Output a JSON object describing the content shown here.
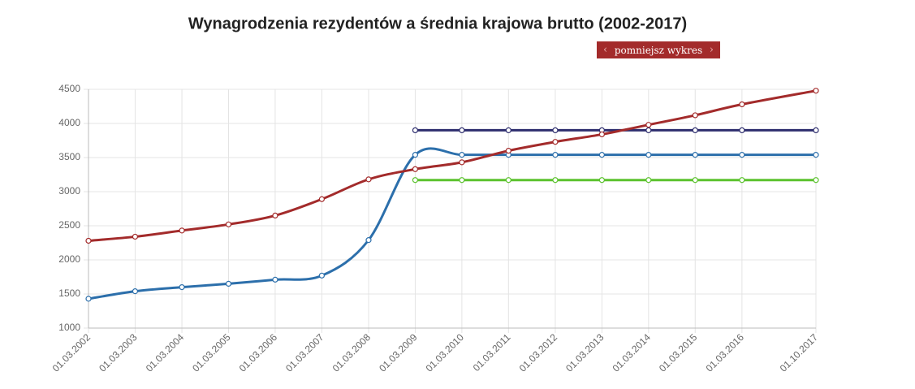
{
  "chart_data": {
    "type": "line",
    "title": "Wynagrodzenia rezydentów a średnia krajowa brutto (2002-2017)",
    "x": [
      "01.03.2002",
      "01.03.2003",
      "01.03.2004",
      "01.03.2005",
      "01.03.2006",
      "01.03.2007",
      "01.03.2008",
      "01.03.2009",
      "01.03.2010",
      "01.03.2011",
      "01.03.2012",
      "01.03.2013",
      "01.03.2014",
      "01.03.2015",
      "01.03.2016",
      "01.10.2017"
    ],
    "series": [
      {
        "color": "#2e2e6e",
        "values": [
          null,
          null,
          null,
          null,
          null,
          null,
          null,
          3900,
          3900,
          3900,
          3900,
          3900,
          3900,
          3900,
          3900,
          3900
        ]
      },
      {
        "color": "#2c6fab",
        "values": [
          1430,
          1540,
          1600,
          1650,
          1710,
          1770,
          2290,
          3540,
          3540,
          3540,
          3540,
          3540,
          3540,
          3540,
          3540,
          3540
        ]
      },
      {
        "color": "#5cc22f",
        "values": [
          null,
          null,
          null,
          null,
          null,
          null,
          null,
          3170,
          3170,
          3170,
          3170,
          3170,
          3170,
          3170,
          3170,
          3170
        ]
      },
      {
        "color": "#a32b2b",
        "values": [
          2280,
          2340,
          2430,
          2520,
          2650,
          2890,
          3180,
          3330,
          3430,
          3600,
          3730,
          3840,
          3980,
          4120,
          4280,
          4480
        ]
      }
    ],
    "ylim": [
      1000,
      4500
    ],
    "yticks": [
      1000,
      1500,
      2000,
      2500,
      3000,
      3500,
      4000,
      4500
    ],
    "grid": true
  },
  "button": {
    "label": "pomniejsz wykres"
  }
}
